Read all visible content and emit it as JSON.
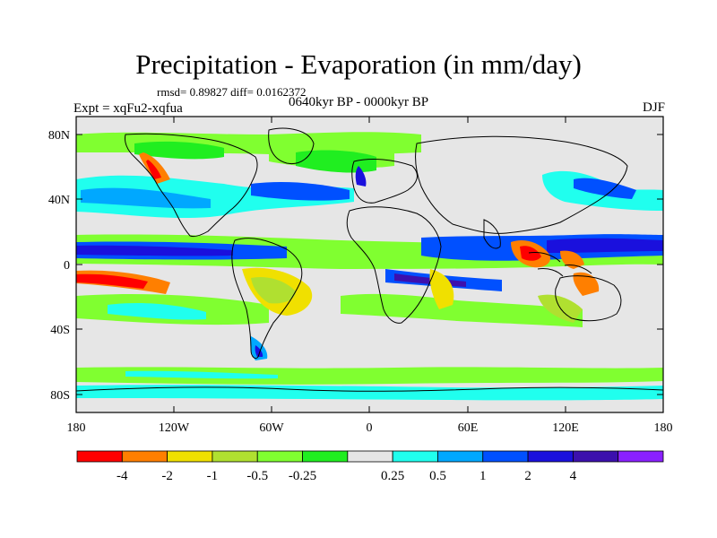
{
  "header": {
    "title": "Precipitation - Evaporation (in mm/day)",
    "stats": "rmsd= 0.89827  diff= 0.0162372",
    "experiment": "Expt = xqFu2-xqfua",
    "period": "0640kyr BP - 0000kyr BP",
    "season": "DJF"
  },
  "axes": {
    "lat_ticks": [
      "80N",
      "40N",
      "0",
      "40S",
      "80S"
    ],
    "lon_ticks": [
      "180",
      "120W",
      "60W",
      "0",
      "60E",
      "120E",
      "180"
    ]
  },
  "colorbar": {
    "colors": [
      "#ff0000",
      "#ff7f00",
      "#f0e000",
      "#b0e030",
      "#80ff30",
      "#20ee20",
      "#e6e6e6",
      "#20ffee",
      "#00a8ff",
      "#0050ff",
      "#1a10dd",
      "#3c10ad",
      "#8a20ff"
    ],
    "labels": [
      "-4",
      "-2",
      "-1",
      "-0.5",
      "-0.25",
      "0.25",
      "0.5",
      "1",
      "2",
      "4"
    ]
  }
}
